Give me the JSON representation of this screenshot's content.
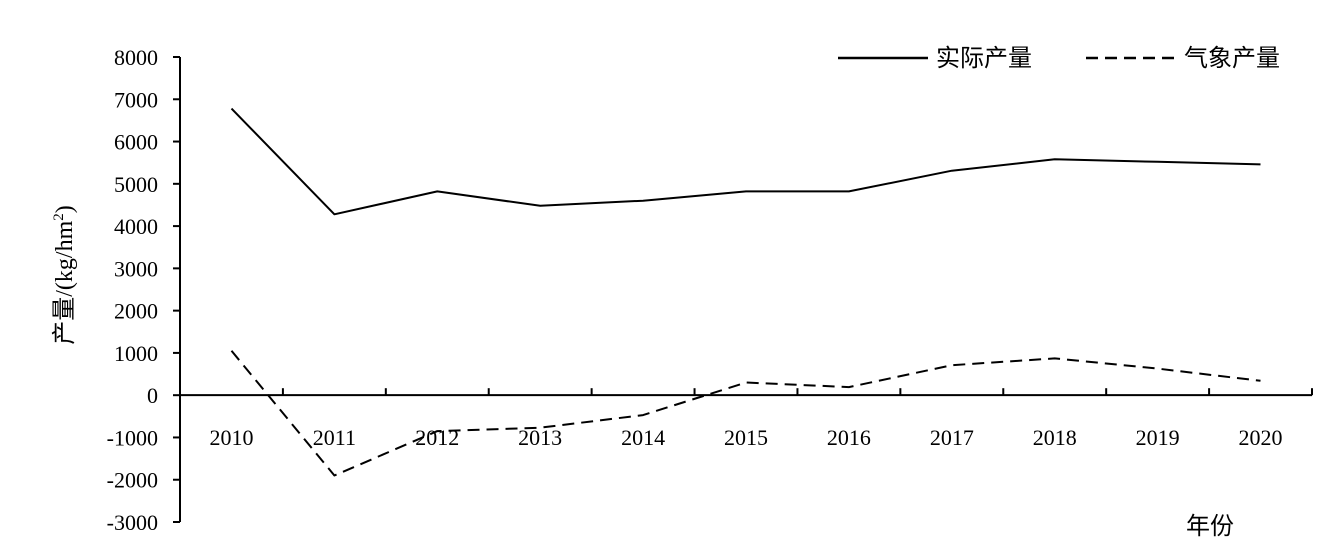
{
  "chart_data": {
    "type": "line",
    "title": "",
    "xlabel": "年份",
    "ylabel": "产量/(kg/hm",
    "ylabel_sup": "2",
    "ylabel_tail": ")",
    "categories": [
      "2010",
      "2011",
      "2012",
      "2013",
      "2014",
      "2015",
      "2016",
      "2017",
      "2018",
      "2019",
      "2020"
    ],
    "ylim": [
      -3000,
      8000
    ],
    "yticks": [
      8000,
      7000,
      6000,
      5000,
      4000,
      3000,
      2000,
      1000,
      0,
      -1000,
      -2000,
      -3000
    ],
    "ytick_labels": [
      "8000",
      "7000",
      "6000",
      "5000",
      "4000",
      "3000",
      "2000",
      "1000",
      "0",
      "-1000",
      "-2000",
      "-3000"
    ],
    "grid": false,
    "legend_position": "top-right",
    "series": [
      {
        "name": "实际产量",
        "style": "solid",
        "color": "#000000",
        "values": [
          6780,
          4280,
          4820,
          4480,
          4600,
          4820,
          4820,
          5310,
          5580,
          5520,
          5460
        ]
      },
      {
        "name": "气象产量",
        "style": "dashed",
        "color": "#000000",
        "values": [
          1050,
          -1900,
          -850,
          -770,
          -470,
          300,
          190,
          710,
          870,
          630,
          340
        ]
      }
    ]
  }
}
